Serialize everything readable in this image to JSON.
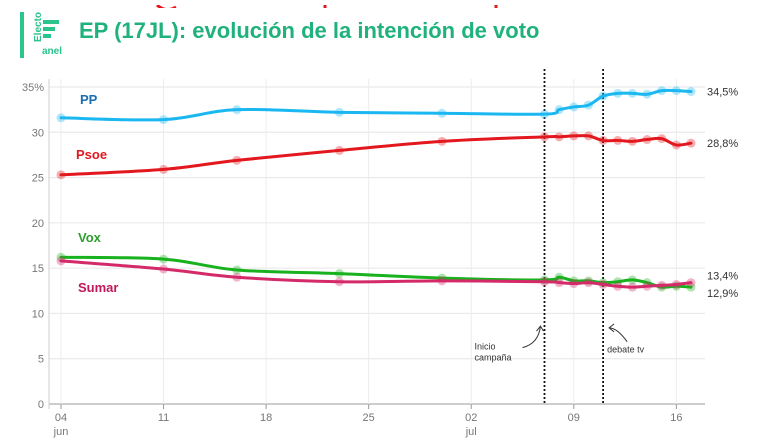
{
  "header": {
    "title": "EP (17JL): evolución de la intención de voto",
    "logo_line1": "Electo",
    "logo_line2": "anel",
    "accent_color": "#2bc48a"
  },
  "chart_data": {
    "type": "line",
    "title": "EP (17JL): evolución de la intención de voto",
    "xlabel": "",
    "ylabel": "",
    "ylim": [
      0,
      35
    ],
    "y_ticks": [
      0,
      5,
      10,
      15,
      20,
      25,
      30,
      35
    ],
    "y_tick_labels": [
      "0",
      "5",
      "10",
      "15",
      "20",
      "25",
      "30",
      "35%"
    ],
    "x_range_days": [
      0,
      43
    ],
    "x_ticks": [
      {
        "day": 0,
        "label": "04",
        "sub": "jun"
      },
      {
        "day": 7,
        "label": "11",
        "sub": ""
      },
      {
        "day": 14,
        "label": "18",
        "sub": ""
      },
      {
        "day": 21,
        "label": "25",
        "sub": ""
      },
      {
        "day": 28,
        "label": "02",
        "sub": "jul"
      },
      {
        "day": 35,
        "label": "09",
        "sub": ""
      },
      {
        "day": 42,
        "label": "16",
        "sub": ""
      }
    ],
    "grid": true,
    "series": [
      {
        "name": "PP",
        "color": "#1ab7f0",
        "label_color": "#1a6db0",
        "end_label": "34,5%",
        "points": [
          [
            0,
            31.6
          ],
          [
            7,
            31.4
          ],
          [
            12,
            32.5
          ],
          [
            19,
            32.2
          ],
          [
            26,
            32.1
          ],
          [
            33,
            32.0
          ],
          [
            34,
            32.5
          ],
          [
            35,
            32.8
          ],
          [
            36,
            33.0
          ],
          [
            37,
            34.0
          ],
          [
            38,
            34.3
          ],
          [
            39,
            34.3
          ],
          [
            40,
            34.2
          ],
          [
            41,
            34.6
          ],
          [
            42,
            34.6
          ],
          [
            43,
            34.5
          ]
        ]
      },
      {
        "name": "Psoe",
        "color": "#e3181e",
        "label_color": "#e3181e",
        "end_label": "28,8%",
        "points": [
          [
            0,
            25.3
          ],
          [
            7,
            25.9
          ],
          [
            12,
            26.9
          ],
          [
            19,
            28.0
          ],
          [
            26,
            29.0
          ],
          [
            33,
            29.5
          ],
          [
            34,
            29.5
          ],
          [
            35,
            29.6
          ],
          [
            36,
            29.6
          ],
          [
            37,
            29.1
          ],
          [
            38,
            29.1
          ],
          [
            39,
            29.0
          ],
          [
            40,
            29.2
          ],
          [
            41,
            29.3
          ],
          [
            42,
            28.6
          ],
          [
            43,
            28.8
          ]
        ]
      },
      {
        "name": "Vox",
        "color": "#19b21f",
        "label_color": "#2e9e2e",
        "end_label": "12,9%",
        "points": [
          [
            0,
            16.2
          ],
          [
            7,
            16.0
          ],
          [
            12,
            14.8
          ],
          [
            19,
            14.4
          ],
          [
            26,
            13.9
          ],
          [
            33,
            13.7
          ],
          [
            34,
            14.0
          ],
          [
            35,
            13.6
          ],
          [
            36,
            13.6
          ],
          [
            37,
            13.4
          ],
          [
            38,
            13.5
          ],
          [
            39,
            13.7
          ],
          [
            40,
            13.4
          ],
          [
            41,
            12.9
          ],
          [
            42,
            13.0
          ],
          [
            43,
            12.9
          ]
        ]
      },
      {
        "name": "Sumar",
        "color": "#d42a6a",
        "label_color": "#c0185a",
        "end_label": "13,4%",
        "points": [
          [
            0,
            15.8
          ],
          [
            7,
            14.9
          ],
          [
            12,
            14.0
          ],
          [
            19,
            13.5
          ],
          [
            26,
            13.6
          ],
          [
            33,
            13.5
          ],
          [
            34,
            13.4
          ],
          [
            35,
            13.3
          ],
          [
            36,
            13.4
          ],
          [
            37,
            13.2
          ],
          [
            38,
            13.0
          ],
          [
            39,
            12.9
          ],
          [
            40,
            13.0
          ],
          [
            41,
            13.1
          ],
          [
            42,
            13.2
          ],
          [
            43,
            13.4
          ]
        ]
      }
    ],
    "annotations": [
      {
        "day": 33.0,
        "lines": [
          "Inicio",
          "campaña"
        ],
        "arrow": "up-right"
      },
      {
        "day": 37.0,
        "lines": [
          "debate tv"
        ],
        "arrow": "up-left"
      }
    ]
  }
}
